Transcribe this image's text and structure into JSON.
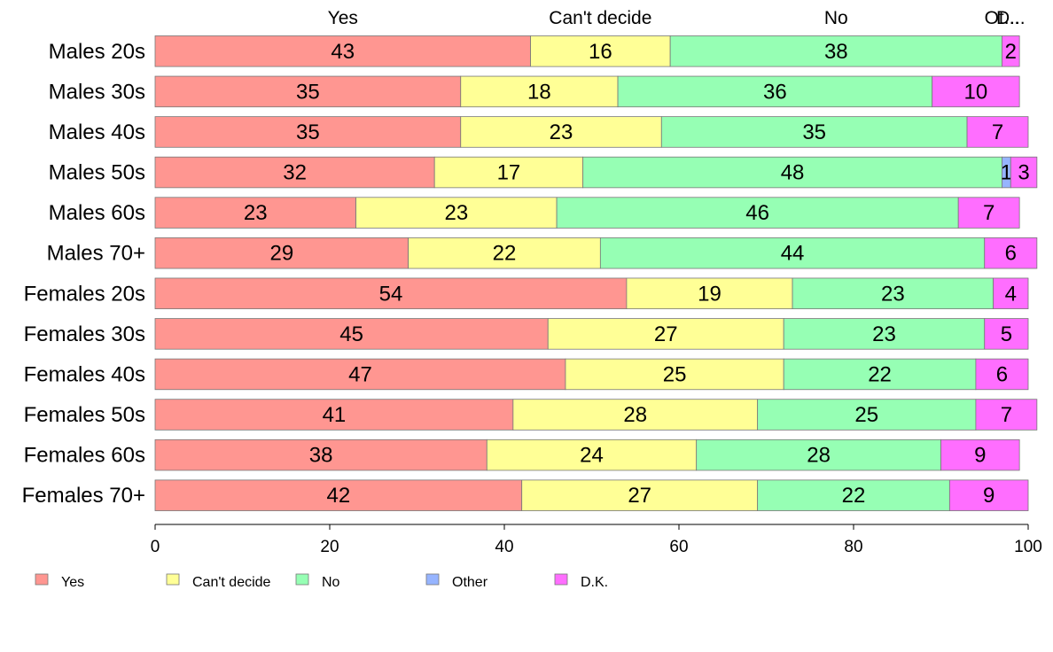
{
  "chart_data": {
    "type": "bar",
    "orientation": "horizontal",
    "stacked": true,
    "xlim": [
      0,
      100
    ],
    "x_ticks": [
      0,
      20,
      40,
      60,
      80,
      100
    ],
    "categories": [
      "Males 20s",
      "Males 30s",
      "Males 40s",
      "Males 50s",
      "Males 60s",
      "Males 70+",
      "Females 20s",
      "Females 30s",
      "Females 40s",
      "Females 50s",
      "Females 60s",
      "Females 70+"
    ],
    "series": [
      {
        "name": "Yes",
        "color": "#ff9691",
        "values": [
          43,
          35,
          35,
          32,
          23,
          29,
          54,
          45,
          47,
          41,
          38,
          42
        ]
      },
      {
        "name": "Can't decide",
        "color": "#ffff96",
        "values": [
          16,
          18,
          23,
          17,
          23,
          22,
          19,
          27,
          25,
          28,
          24,
          27
        ]
      },
      {
        "name": "No",
        "color": "#96ffb4",
        "values": [
          38,
          36,
          35,
          48,
          46,
          44,
          23,
          23,
          22,
          25,
          28,
          22
        ]
      },
      {
        "name": "Other",
        "color": "#96b4ff",
        "values": [
          0,
          0,
          0,
          1,
          0,
          0,
          0,
          0,
          0,
          0,
          0,
          0
        ]
      },
      {
        "name": "D.K.",
        "color": "#ff6eff",
        "values": [
          2,
          10,
          7,
          3,
          7,
          6,
          4,
          5,
          6,
          7,
          9,
          9
        ]
      }
    ],
    "top_labels": [
      "Yes",
      "Can't decide",
      "No",
      "Ot...",
      "D..."
    ],
    "legend_position": "bottom-left",
    "grid": false
  }
}
